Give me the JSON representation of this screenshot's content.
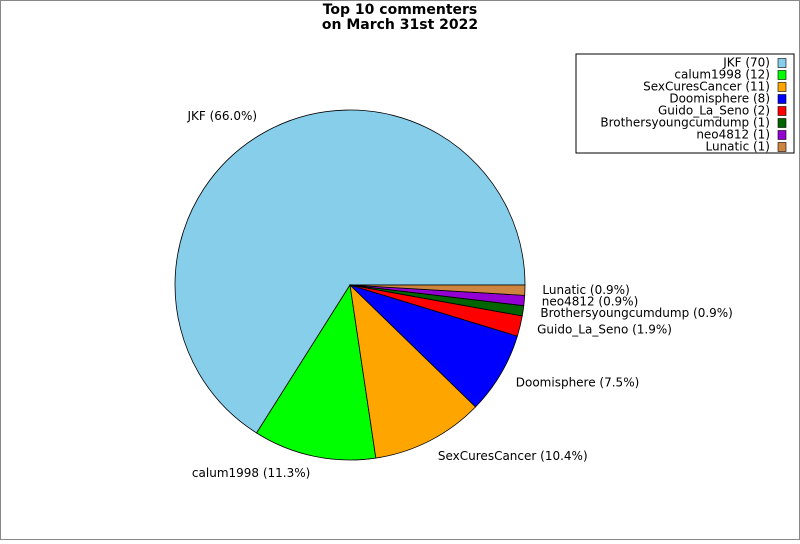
{
  "chart_data": {
    "type": "pie",
    "title": [
      "Top 10 commenters",
      "on March 31st 2022"
    ],
    "categories": [
      "JKF (70)",
      "calum1998 (12)",
      "SexCuresCancer (11)",
      "Doomisphere (8)",
      "Guido_La_Seno (2)",
      "Brothersyoungcumdump (1)",
      "neo4812 (1)",
      "Lunatic (1)"
    ],
    "values": [
      70,
      12,
      11,
      8,
      2,
      1,
      1,
      1
    ],
    "value_labels": [
      "JKF (66.0%)",
      "calum1998 (11.3%)",
      "SexCuresCancer (10.4%)",
      "Doomisphere (7.5%)",
      "Guido_La_Seno (1.9%)",
      "Brothersyoungcumdump (0.9%)",
      "neo4812 (0.9%)",
      "Lunatic (0.9%)"
    ],
    "colors": [
      "#87ceeb",
      "#00ff00",
      "#ffa500",
      "#0000ff",
      "#ff0000",
      "#006400",
      "#9400d3",
      "#cd853f"
    ],
    "legend": "upper right"
  }
}
